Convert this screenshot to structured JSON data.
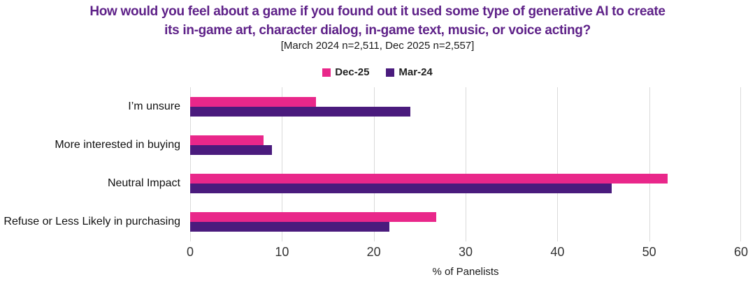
{
  "header": {
    "title_line1": "How would you feel about a game if you found out it used some type of generative AI to create",
    "title_line2": "its in-game art, character dialog, in-game text, music, or voice acting?",
    "subtitle": "[March 2024 n=2,511, Dec 2025 n=2,557]"
  },
  "colors": {
    "title_text": "#5e2188",
    "dec25": "#e9278a",
    "mar24": "#4a1b7d",
    "gridline": "#dadada",
    "tick_text": "#333333",
    "label_text": "#111111"
  },
  "chart_data": {
    "type": "bar",
    "orientation": "horizontal",
    "title": "How would you feel about a game if you found out it used some type of generative AI to create its in-game art, character dialog, in-game text, music, or voice acting?",
    "subtitle": "[March 2024 n=2,511, Dec 2025 n=2,557]",
    "categories": [
      "I’m unsure",
      "More interested in buying",
      "Neutral Impact",
      "Refuse or Less Likely in purchasing"
    ],
    "series": [
      {
        "name": "Dec-25",
        "color": "#e9278a",
        "values": [
          13.7,
          8.0,
          52.0,
          26.8
        ]
      },
      {
        "name": "Mar-24",
        "color": "#4a1b7d",
        "values": [
          24.0,
          8.9,
          45.9,
          21.7
        ]
      }
    ],
    "xlabel": "% of Panelists",
    "xlim": [
      0,
      60
    ],
    "xticks": [
      0,
      10,
      20,
      30,
      40,
      50,
      60
    ],
    "grid": "vertical",
    "legend_position": "top"
  }
}
